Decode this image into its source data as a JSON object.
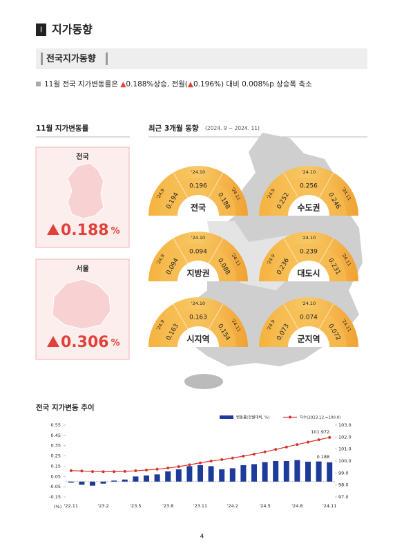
{
  "header": {
    "number": "Ⅰ",
    "title": "지가동향"
  },
  "section": "전국지가동향",
  "summary": [
    "11월 전국 지가변동률은 ",
    "▲",
    "0.188%상승, 전월(",
    "▲",
    "0.196%) 대비 0.008%p 상승폭 축소"
  ],
  "left": {
    "title": "11월 지가변동률",
    "cards": [
      {
        "label": "전국",
        "value": 0.188,
        "unit": "%"
      },
      {
        "label": "서울",
        "value": 0.306,
        "unit": "%"
      }
    ]
  },
  "right": {
    "title": "최근 3개월 동향",
    "period": "(2024. 9 ~ 2024. 11)",
    "months": [
      "'24.9",
      "'24.10",
      "'24.11"
    ],
    "gauges": [
      {
        "name": "전국",
        "values": [
          0.194,
          0.196,
          0.188
        ]
      },
      {
        "name": "수도권",
        "values": [
          0.252,
          0.256,
          0.246
        ]
      },
      {
        "name": "지방권",
        "values": [
          0.094,
          0.094,
          0.088
        ]
      },
      {
        "name": "대도시",
        "values": [
          0.236,
          0.239,
          0.231
        ]
      },
      {
        "name": "시지역",
        "values": [
          0.163,
          0.163,
          0.154
        ]
      },
      {
        "name": "군지역",
        "values": [
          0.073,
          0.074,
          0.072
        ]
      }
    ]
  },
  "page_number": "4",
  "chart_data": {
    "type": "bar",
    "title": "전국 지가변동 추이",
    "ylabel": "(%)",
    "categories": [
      "'22.11",
      null,
      null,
      "'23.2",
      null,
      null,
      "'23.5",
      null,
      null,
      "'23.8",
      null,
      null,
      "'23.11",
      null,
      null,
      "'24.2",
      null,
      null,
      "'24.5",
      null,
      null,
      "'24.8",
      null,
      null,
      "'24.11"
    ],
    "series": [
      {
        "name": "변동률(전월대비, %)",
        "type": "bar",
        "color": "#1f3b9a",
        "values": [
          -0.01,
          -0.03,
          -0.04,
          -0.02,
          0.01,
          0.02,
          0.05,
          0.06,
          0.07,
          0.1,
          0.12,
          0.15,
          0.16,
          0.15,
          0.12,
          0.13,
          0.16,
          0.17,
          0.19,
          0.2,
          0.2,
          0.21,
          0.194,
          0.196,
          0.188
        ]
      },
      {
        "name": "지수(2023.12.=100.0)",
        "type": "line",
        "axis": "y2",
        "color": "#d9342b",
        "values": [
          99.2,
          99.17,
          99.13,
          99.11,
          99.12,
          99.14,
          99.19,
          99.25,
          99.32,
          99.42,
          99.54,
          99.69,
          99.85,
          100.0,
          100.12,
          100.25,
          100.41,
          100.58,
          100.77,
          100.97,
          101.17,
          101.38,
          101.58,
          101.78,
          101.972
        ]
      }
    ],
    "ylim": [
      -0.15,
      0.55
    ],
    "yticks": [
      -0.15,
      -0.05,
      0.05,
      0.15,
      0.25,
      0.35,
      0.45,
      0.55
    ],
    "y2lim": [
      97,
      103
    ],
    "y2ticks": [
      {
        "value": 97,
        "label": "97.0"
      },
      {
        "value": 98,
        "label": "98.0"
      },
      {
        "value": 99,
        "label": "99.0"
      },
      {
        "value": 100,
        "label": "100.0"
      },
      {
        "value": 101,
        "label": "101.0"
      },
      {
        "value": 102,
        "label": "102.0"
      },
      {
        "value": 103,
        "label": "103.0"
      }
    ]
  }
}
